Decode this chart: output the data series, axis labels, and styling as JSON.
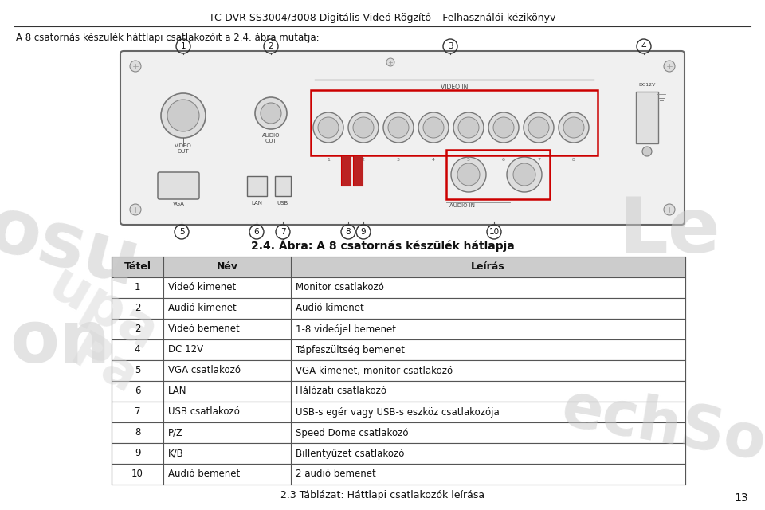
{
  "page_title": "TC-DVR SS3004/3008 Digitális Videó Rögzítő – Felhasználói kézikönyv",
  "intro_text": "A 8 csatornás készülék háttlapi csatlakozóit a 2.4. ábra mutatja:",
  "figure_caption": "2.4. Ábra: A 8 csatornás készülék hátlapja",
  "table_caption": "2.3 Táblázat: Háttlapi csatlakozók leírása",
  "page_number": "13",
  "header_cols": [
    "Tétel",
    "Név",
    "Leírás"
  ],
  "table_data": [
    [
      "1",
      "Videó kimenet",
      "Monitor csatlakozó"
    ],
    [
      "2",
      "Audió kimenet",
      "Audió kimenet"
    ],
    [
      "2",
      "Videó bemenet",
      "1-8 videójel bemenet"
    ],
    [
      "4",
      "DC 12V",
      "Tápfeszültség bemenet"
    ],
    [
      "5",
      "VGA csatlakozó",
      "VGA kimenet, monitor csatlakozó"
    ],
    [
      "6",
      "LAN",
      "Hálózati csatlakozó"
    ],
    [
      "7",
      "USB csatlakozó",
      "USB-s egér vagy USB-s eszköz csatlakozója"
    ],
    [
      "8",
      "P/Z",
      "Speed Dome csatlakozó"
    ],
    [
      "9",
      "K/B",
      "Billentyűzet csatlakozó"
    ],
    [
      "10",
      "Audió bemenet",
      "2 audió bemenet"
    ]
  ],
  "bg_color": "#ffffff",
  "table_header_bg": "#cccccc",
  "table_row_bg": "#ffffff",
  "table_line_color": "#555555",
  "red_box": "#cc0000"
}
